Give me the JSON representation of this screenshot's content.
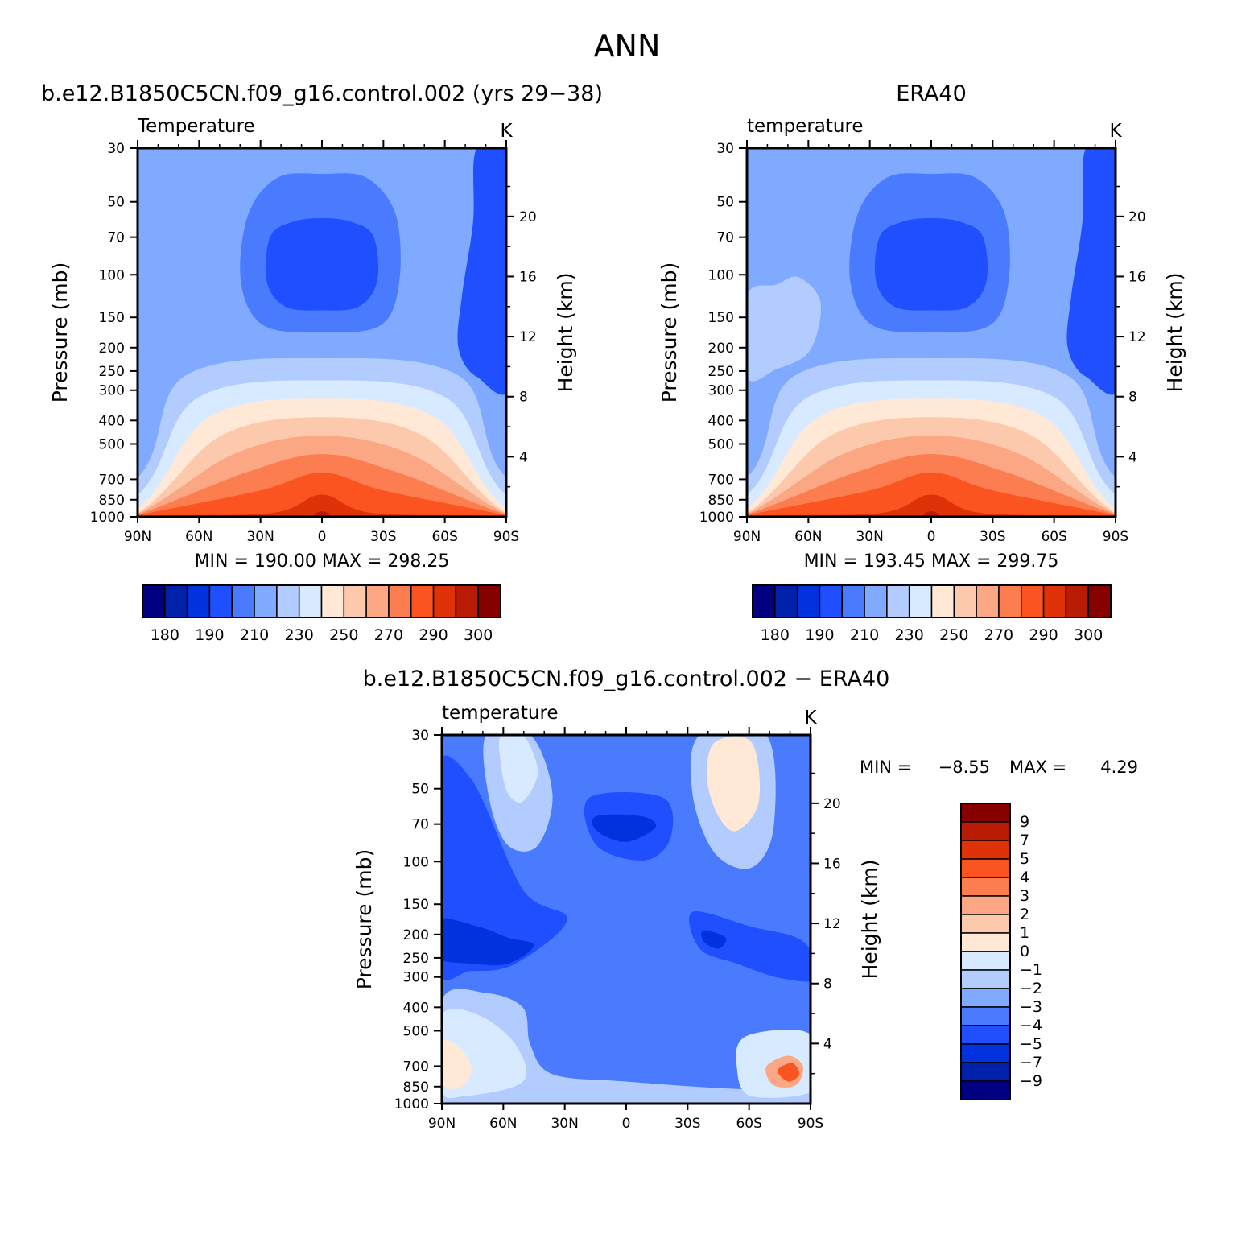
{
  "page_title": "ANN",
  "colors": {
    "temp_levels": [
      "#000080",
      "#0022aa",
      "#0033dd",
      "#1f4fff",
      "#4a7bff",
      "#7faaff",
      "#b3ccff",
      "#d8eaff",
      "#ffe8d6",
      "#fdc9ad",
      "#fca783",
      "#fc7d4f",
      "#fc5420",
      "#e03208",
      "#b81c05",
      "#870000"
    ],
    "diff_levels": [
      "#000080",
      "#0022aa",
      "#0033dd",
      "#1f4fff",
      "#4a7bff",
      "#7faaff",
      "#b3ccff",
      "#d8eaff",
      "#ffe8d6",
      "#fdc9ad",
      "#fca783",
      "#fc7d4f",
      "#fc5420",
      "#e03208",
      "#b81c05",
      "#870000"
    ]
  },
  "chart_data": [
    {
      "type": "heatmap",
      "id": "model",
      "title": "b.e12.B1850C5CN.f09_g16.control.002 (yrs 29−38)",
      "variable": "Temperature",
      "units": "K",
      "xlabel": "",
      "ylabel": "Pressure (mb)",
      "y2label": "Height (km)",
      "x_tick_labels": [
        "90N",
        "60N",
        "30N",
        "0",
        "30S",
        "60S",
        "90S"
      ],
      "x_ticks": [
        90,
        60,
        30,
        0,
        -30,
        -60,
        -90
      ],
      "y_ticks": [
        30,
        50,
        70,
        100,
        150,
        200,
        250,
        300,
        400,
        500,
        700,
        850,
        1000
      ],
      "y_range": [
        30,
        1000
      ],
      "y2_ticks": [
        4,
        8,
        12,
        16,
        20
      ],
      "stats": "MIN = 190.00   MAX = 298.25",
      "min": 190.0,
      "max": 298.25,
      "colorbar_labels": [
        "180",
        "190",
        "210",
        "230",
        "250",
        "270",
        "290",
        "300"
      ]
    },
    {
      "type": "heatmap",
      "id": "obs",
      "title": "ERA40",
      "variable": "temperature",
      "units": "K",
      "xlabel": "",
      "ylabel": "Pressure (mb)",
      "y2label": "Height (km)",
      "x_tick_labels": [
        "90N",
        "60N",
        "30N",
        "0",
        "30S",
        "60S",
        "90S"
      ],
      "x_ticks": [
        90,
        60,
        30,
        0,
        -30,
        -60,
        -90
      ],
      "y_ticks": [
        30,
        50,
        70,
        100,
        150,
        200,
        250,
        300,
        400,
        500,
        700,
        850,
        1000
      ],
      "y_range": [
        30,
        1000
      ],
      "y2_ticks": [
        4,
        8,
        12,
        16,
        20
      ],
      "stats": "MIN = 193.45   MAX = 299.75",
      "min": 193.45,
      "max": 299.75,
      "colorbar_labels": [
        "180",
        "190",
        "210",
        "230",
        "250",
        "270",
        "290",
        "300"
      ]
    },
    {
      "type": "heatmap",
      "id": "diff",
      "title": "b.e12.B1850C5CN.f09_g16.control.002 − ERA40",
      "variable": "temperature",
      "units": "K",
      "xlabel": "",
      "ylabel": "Pressure (mb)",
      "y2label": "Height (km)",
      "x_tick_labels": [
        "90N",
        "60N",
        "30N",
        "0",
        "30S",
        "60S",
        "90S"
      ],
      "x_ticks": [
        90,
        60,
        30,
        0,
        -30,
        -60,
        -90
      ],
      "y_ticks": [
        30,
        50,
        70,
        100,
        150,
        200,
        250,
        300,
        400,
        500,
        700,
        850,
        1000
      ],
      "y_range": [
        30,
        1000
      ],
      "y2_ticks": [
        4,
        8,
        12,
        16,
        20
      ],
      "stats_min_label": "MIN =",
      "stats_min_value": "−8.55",
      "stats_max_label": "MAX =",
      "stats_max_value": "4.29",
      "min": -8.55,
      "max": 4.29,
      "colorbar_labels": [
        "9",
        "7",
        "5",
        "4",
        "3",
        "2",
        "1",
        "0",
        "−1",
        "−2",
        "−3",
        "−4",
        "−5",
        "−7",
        "−9"
      ]
    }
  ]
}
